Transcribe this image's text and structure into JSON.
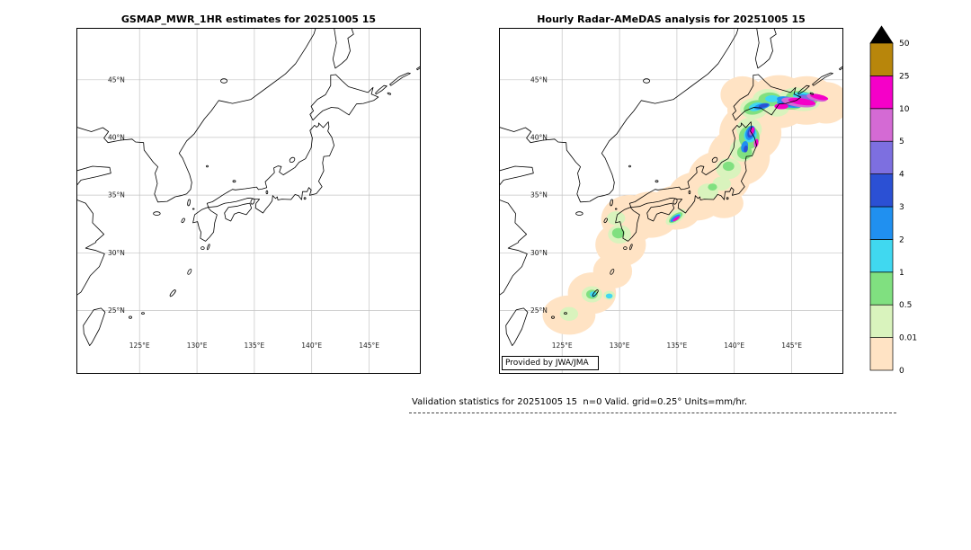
{
  "chart_data": {
    "type": "heatmap",
    "description": "Hourly precipitation validation maps over Japan: satellite estimate (left) vs radar analysis (right)",
    "projection": {
      "lon_range": [
        119.5,
        149.5
      ],
      "lat_range": [
        19.5,
        49.5
      ]
    },
    "grid": true,
    "x_ticks": [
      {
        "label": "125°E",
        "lon": 125
      },
      {
        "label": "130°E",
        "lon": 130
      },
      {
        "label": "135°E",
        "lon": 135
      },
      {
        "label": "140°E",
        "lon": 140
      },
      {
        "label": "145°E",
        "lon": 145
      }
    ],
    "y_ticks": [
      {
        "label": "25°N",
        "lat": 25
      },
      {
        "label": "30°N",
        "lat": 30
      },
      {
        "label": "35°N",
        "lat": 35
      },
      {
        "label": "40°N",
        "lat": 40
      },
      {
        "label": "45°N",
        "lat": 45
      }
    ],
    "panels": [
      {
        "title": "GSMAP_MWR_1HR estimates for 20251005 15",
        "precip_cells": []
      },
      {
        "title": "Hourly Radar-AMeDAS analysis for 20251005 15",
        "credit": "Provided by JWA/JMA",
        "precip_cells": [
          [
            125.6,
            24.6,
            2.3,
            1.7,
            0,
            "0"
          ],
          [
            127.6,
            26.5,
            2.1,
            1.8,
            0,
            "0"
          ],
          [
            129.4,
            28.4,
            1.7,
            1.5,
            0,
            "0"
          ],
          [
            130.1,
            30.7,
            2.2,
            1.9,
            0,
            "0"
          ],
          [
            130.9,
            32.9,
            2.5,
            2.1,
            0,
            "0"
          ],
          [
            132.7,
            33.3,
            2.5,
            2.0,
            0,
            "0"
          ],
          [
            134.9,
            33.9,
            2.3,
            1.9,
            0,
            "0"
          ],
          [
            136.7,
            34.9,
            2.5,
            2.1,
            0,
            "0"
          ],
          [
            138.7,
            36.5,
            2.7,
            2.3,
            0,
            "0"
          ],
          [
            140.4,
            38.3,
            2.7,
            2.5,
            0,
            "0"
          ],
          [
            141.4,
            40.4,
            2.7,
            2.5,
            0,
            "0"
          ],
          [
            142.1,
            42.4,
            2.7,
            2.3,
            0,
            "0"
          ],
          [
            143.9,
            43.1,
            2.7,
            2.3,
            0,
            "0"
          ],
          [
            146.3,
            43.2,
            2.7,
            2.1,
            0,
            "0"
          ],
          [
            148.0,
            43.0,
            2.0,
            1.8,
            0,
            "0"
          ],
          [
            139.1,
            34.3,
            1.7,
            1.3,
            0,
            "0"
          ],
          [
            140.7,
            43.7,
            1.9,
            1.6,
            0,
            "0"
          ],
          [
            130.0,
            31.6,
            1.0,
            0.8,
            0,
            "0.01"
          ],
          [
            129.7,
            33.0,
            0.8,
            0.6,
            0,
            "0.01"
          ],
          [
            127.6,
            26.4,
            0.9,
            0.7,
            0,
            "0.01"
          ],
          [
            125.6,
            24.7,
            0.8,
            0.6,
            0,
            "0.01"
          ],
          [
            134.9,
            33.1,
            1.0,
            0.5,
            -35,
            "0.01"
          ],
          [
            137.7,
            35.3,
            0.9,
            0.7,
            0,
            "0.01"
          ],
          [
            139.5,
            37.3,
            1.1,
            0.9,
            0,
            "0.01"
          ],
          [
            140.7,
            38.9,
            1.1,
            1.0,
            0,
            "0.01"
          ],
          [
            141.3,
            40.7,
            1.1,
            1.0,
            0,
            "0.01"
          ],
          [
            141.7,
            42.5,
            1.2,
            0.9,
            0,
            "0.01"
          ],
          [
            142.9,
            43.3,
            1.3,
            0.9,
            0,
            "0.01"
          ],
          [
            145.7,
            43.3,
            1.8,
            1.0,
            8,
            "0.01"
          ],
          [
            143.7,
            42.6,
            1.1,
            0.8,
            0,
            "0.01"
          ],
          [
            138.9,
            36.0,
            0.8,
            0.6,
            0,
            "0.01"
          ],
          [
            129.1,
            26.3,
            0.5,
            0.4,
            0,
            "0.01"
          ],
          [
            141.3,
            40.0,
            0.9,
            1.0,
            0,
            "0.5"
          ],
          [
            140.9,
            38.7,
            0.65,
            0.6,
            0,
            "0.5"
          ],
          [
            141.8,
            42.6,
            1.0,
            0.6,
            -15,
            "0.5"
          ],
          [
            143.1,
            43.3,
            1.0,
            0.6,
            0,
            "0.5"
          ],
          [
            145.9,
            43.4,
            1.4,
            0.6,
            8,
            "0.5"
          ],
          [
            129.9,
            31.7,
            0.55,
            0.45,
            0,
            "0.5"
          ],
          [
            127.6,
            26.4,
            0.5,
            0.4,
            0,
            "0.5"
          ],
          [
            134.9,
            33.05,
            0.7,
            0.3,
            -35,
            "0.5"
          ],
          [
            139.5,
            37.5,
            0.5,
            0.4,
            0,
            "0.5"
          ],
          [
            138.1,
            35.7,
            0.4,
            0.3,
            0,
            "0.5"
          ],
          [
            144.6,
            42.95,
            1.3,
            0.5,
            8,
            "0.5"
          ],
          [
            141.4,
            40.2,
            0.55,
            0.65,
            15,
            "1"
          ],
          [
            141.9,
            42.65,
            0.65,
            0.35,
            -15,
            "1"
          ],
          [
            143.3,
            43.35,
            0.6,
            0.3,
            0,
            "1"
          ],
          [
            146.1,
            43.5,
            1.0,
            0.4,
            10,
            "1"
          ],
          [
            127.7,
            26.4,
            0.3,
            0.25,
            0,
            "1"
          ],
          [
            129.1,
            26.25,
            0.3,
            0.22,
            0,
            "1"
          ],
          [
            134.9,
            33.05,
            0.5,
            0.2,
            -35,
            "1"
          ],
          [
            144.7,
            42.95,
            1.0,
            0.35,
            8,
            "1"
          ],
          [
            141.4,
            40.4,
            0.4,
            0.65,
            18,
            "2"
          ],
          [
            140.9,
            39.2,
            0.3,
            0.5,
            12,
            "2"
          ],
          [
            142.4,
            42.7,
            0.7,
            0.25,
            -12,
            "2"
          ],
          [
            144.5,
            43.25,
            0.8,
            0.3,
            8,
            "2"
          ],
          [
            144.8,
            42.9,
            1.1,
            0.3,
            8,
            "2"
          ],
          [
            134.85,
            33.0,
            0.5,
            0.18,
            -35,
            "2"
          ],
          [
            146.3,
            43.45,
            0.8,
            0.25,
            10,
            "2"
          ],
          [
            141.45,
            40.45,
            0.28,
            0.5,
            18,
            "3"
          ],
          [
            142.55,
            42.75,
            0.45,
            0.16,
            -12,
            "3"
          ],
          [
            144.9,
            42.95,
            0.8,
            0.2,
            8,
            "3"
          ],
          [
            141.0,
            39.0,
            0.18,
            0.3,
            10,
            "3"
          ],
          [
            145.2,
            43.0,
            0.85,
            0.25,
            8,
            "4"
          ],
          [
            146.4,
            43.4,
            0.75,
            0.25,
            10,
            "4"
          ],
          [
            141.5,
            40.5,
            0.2,
            0.35,
            18,
            "4"
          ],
          [
            145.6,
            43.05,
            1.5,
            0.4,
            8,
            "5"
          ],
          [
            147.2,
            43.45,
            0.9,
            0.3,
            12,
            "5"
          ],
          [
            141.55,
            40.55,
            0.15,
            0.3,
            18,
            "5"
          ],
          [
            141.9,
            39.5,
            0.2,
            0.4,
            8,
            "5"
          ],
          [
            145.9,
            43.1,
            1.2,
            0.28,
            8,
            "10"
          ],
          [
            147.4,
            43.5,
            0.8,
            0.22,
            12,
            "10"
          ],
          [
            144.1,
            42.7,
            0.6,
            0.25,
            0,
            "10"
          ],
          [
            141.6,
            40.6,
            0.14,
            0.3,
            18,
            "10"
          ],
          [
            141.95,
            39.55,
            0.15,
            0.3,
            8,
            "10"
          ],
          [
            134.95,
            32.95,
            0.35,
            0.12,
            -35,
            "10"
          ]
        ]
      }
    ],
    "colorbar": {
      "units": "mm/hr",
      "levels": [
        0,
        0.01,
        0.5,
        1,
        2,
        3,
        4,
        5,
        10,
        25,
        50
      ],
      "tick_labels": [
        "0",
        "0.01",
        "0.5",
        "1",
        "2",
        "3",
        "4",
        "5",
        "10",
        "25",
        "50"
      ],
      "segment_colors_bottom_to_top": [
        "#ffe3c4",
        "#d9f3bd",
        "#80e080",
        "#40d8f0",
        "#2090f0",
        "#2b50d4",
        "#7d6fe0",
        "#d46ad4",
        "#f500c8",
        "#b8860b"
      ],
      "overflow_color": "#000000"
    },
    "precip_cells_format": "[lon, lat, rx_deg, ry_deg, rot_deg, band] where band is the lower bound label of the color level"
  },
  "caption": {
    "text": "Validation statistics for 20251005 15  n=0 Valid. grid=0.25° Units=mm/hr."
  }
}
